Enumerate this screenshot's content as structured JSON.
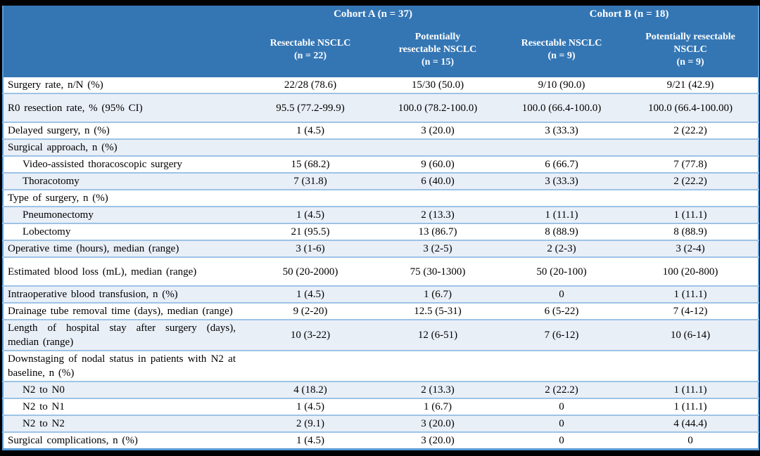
{
  "table": {
    "name": "surgical-outcomes-comparison-table",
    "colors": {
      "header_bg": "#3476B4",
      "header_text": "#FFFFFF",
      "shaded_row_bg": "#E9EFF7",
      "row_border": "#9DC3E6",
      "outer_border": "#5B9BD5",
      "body_text": "#000000",
      "canvas_bg": "#000000"
    },
    "header": {
      "groups": [
        {
          "id": "cohort-a",
          "label": "Cohort A (n = 37)"
        },
        {
          "id": "cohort-b",
          "label": "Cohort B (n = 18)"
        }
      ],
      "columns": [
        {
          "id": "cohort-a-resectable",
          "lines": [
            "Resectable NSCLC",
            "(n = 22)"
          ]
        },
        {
          "id": "cohort-a-potentially-resectable",
          "lines": [
            "Potentially",
            "resectable NSCLC",
            "(n = 15)"
          ]
        },
        {
          "id": "cohort-b-resectable",
          "lines": [
            "Resectable NSCLC",
            "(n = 9)"
          ]
        },
        {
          "id": "cohort-b-potentially-resectable",
          "lines": [
            "Potentially resectable",
            "NSCLC",
            "(n = 9)"
          ]
        }
      ]
    },
    "rows": [
      {
        "label": "Surgery rate, n/N (%)",
        "values": [
          "22/28 (78.6)",
          "15/30 (50.0)",
          "9/10 (90.0)",
          "9/21 (42.9)"
        ],
        "indent": false,
        "shaded": false,
        "tall": false
      },
      {
        "label": "R0 resection rate, % (95% CI)",
        "values": [
          "95.5 (77.2-99.9)",
          "100.0 (78.2-100.0)",
          "100.0 (66.4-100.0)",
          "100.0 (66.4-100.00)"
        ],
        "indent": false,
        "shaded": true,
        "tall": true
      },
      {
        "label": "Delayed surgery, n (%)",
        "values": [
          "1 (4.5)",
          "3 (20.0)",
          "3 (33.3)",
          "2 (22.2)"
        ],
        "indent": false,
        "shaded": false,
        "tall": false
      },
      {
        "label": "Surgical approach, n (%)",
        "values": [
          "",
          "",
          "",
          ""
        ],
        "indent": false,
        "shaded": true,
        "tall": false
      },
      {
        "label": "Video-assisted thoracoscopic surgery",
        "values": [
          "15 (68.2)",
          "9 (60.0)",
          "6 (66.7)",
          "7 (77.8)"
        ],
        "indent": true,
        "shaded": false,
        "tall": false
      },
      {
        "label": "Thoracotomy",
        "values": [
          "7 (31.8)",
          "6 (40.0)",
          "3 (33.3)",
          "2 (22.2)"
        ],
        "indent": true,
        "shaded": true,
        "tall": false
      },
      {
        "label": "Type of surgery, n (%)",
        "values": [
          "",
          "",
          "",
          ""
        ],
        "indent": false,
        "shaded": false,
        "tall": false
      },
      {
        "label": "Pneumonectomy",
        "values": [
          "1 (4.5)",
          "2 (13.3)",
          "1 (11.1)",
          "1 (11.1)"
        ],
        "indent": true,
        "shaded": true,
        "tall": false
      },
      {
        "label": "Lobectomy",
        "values": [
          "21 (95.5)",
          "13 (86.7)",
          "8 (88.9)",
          "8 (88.9)"
        ],
        "indent": true,
        "shaded": false,
        "tall": false
      },
      {
        "label": "Operative time (hours), median (range)",
        "values": [
          "3 (1-6)",
          "3 (2-5)",
          "2 (2-3)",
          "3 (2-4)"
        ],
        "indent": false,
        "shaded": true,
        "tall": false
      },
      {
        "label": "Estimated blood loss (mL), median (range)",
        "values": [
          "50 (20-2000)",
          "75 (30-1300)",
          "50 (20-100)",
          "100 (20-800)"
        ],
        "indent": false,
        "shaded": false,
        "tall": true
      },
      {
        "label": "Intraoperative blood transfusion, n (%)",
        "values": [
          "1 (4.5)",
          "1 (6.7)",
          "0",
          "1 (11.1)"
        ],
        "indent": false,
        "shaded": true,
        "tall": false
      },
      {
        "label": "Drainage tube removal time (days), median (range)",
        "values": [
          "9 (2-20)",
          "12.5 (5-31)",
          "6 (5-22)",
          "7 (4-12)"
        ],
        "indent": false,
        "shaded": false,
        "tall": false
      },
      {
        "label": "Length of hospital stay after surgery (days), median (range)",
        "values": [
          "10 (3-22)",
          "12 (6-51)",
          "7 (6-12)",
          "10 (6-14)"
        ],
        "indent": false,
        "shaded": true,
        "tall": false
      },
      {
        "label": "Downstaging of nodal status in patients with N2 at baseline, n (%)",
        "values": [
          "",
          "",
          "",
          ""
        ],
        "indent": false,
        "shaded": false,
        "tall": false
      },
      {
        "label": "N2 to N0",
        "values": [
          "4 (18.2)",
          "2 (13.3)",
          "2 (22.2)",
          "1 (11.1)"
        ],
        "indent": true,
        "shaded": true,
        "tall": false
      },
      {
        "label": "N2 to N1",
        "values": [
          "1 (4.5)",
          "1 (6.7)",
          "0",
          "1 (11.1)"
        ],
        "indent": true,
        "shaded": false,
        "tall": false
      },
      {
        "label": "N2 to N2",
        "values": [
          "2 (9.1)",
          "3 (20.0)",
          "0",
          "4 (44.4)"
        ],
        "indent": true,
        "shaded": true,
        "tall": false
      },
      {
        "label": "Surgical complications, n (%)",
        "values": [
          "1 (4.5)",
          "3 (20.0)",
          "0",
          "0"
        ],
        "indent": false,
        "shaded": false,
        "tall": false
      }
    ]
  }
}
